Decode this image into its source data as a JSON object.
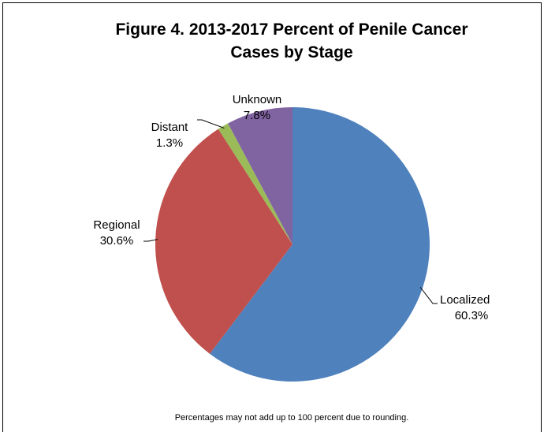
{
  "chart_data": {
    "type": "pie",
    "title": "Figure 4. 2013-2017 Percent of Penile Cancer Cases by Stage",
    "categories": [
      "Localized",
      "Regional",
      "Distant",
      "Unknown"
    ],
    "values": [
      60.3,
      30.6,
      1.3,
      7.8
    ],
    "value_labels": [
      "60.3%",
      "30.6%",
      "1.3%",
      "7.8%"
    ],
    "colors": [
      "#4f81bd",
      "#c0504d",
      "#9bbb59",
      "#8064a2"
    ],
    "footnote": "Percentages may not add up to 100 percent due to rounding."
  }
}
